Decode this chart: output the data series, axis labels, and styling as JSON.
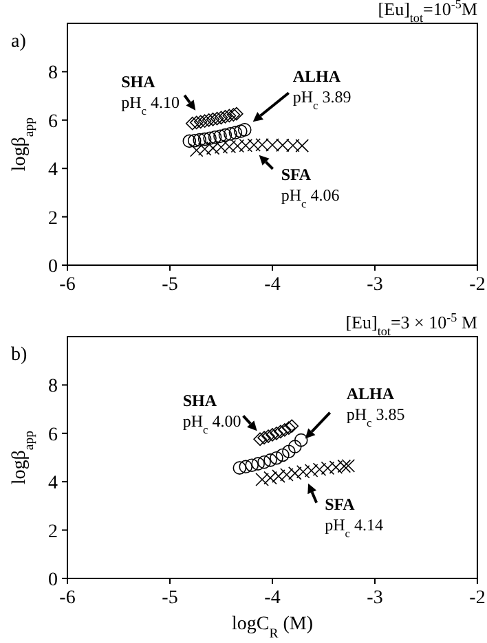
{
  "chart_data": [
    {
      "type": "scatter",
      "title": "[Eu]$_{tot}$=10$^{-5}$M",
      "ylabel": "logβ$_{app}$",
      "xlim": [
        -6,
        -2
      ],
      "xticks": [
        -6,
        -5,
        -4,
        -3,
        -2
      ],
      "ylim": [
        0,
        10
      ],
      "yticks": [
        0,
        2,
        4,
        6,
        8
      ],
      "annotations": [
        "a)",
        {
          "text": "pH$_{c}$ 4.10",
          "x": -4.75,
          "y": 6.4
        },
        {
          "text": "pH$_{c}$ 3.89",
          "x": -4.19,
          "y": 5.93
        },
        {
          "text": "pH$_{c}$ 4.06",
          "x": -4.13,
          "y": 4.55
        }
      ],
      "series": [
        {
          "name": "SHA",
          "color": "#000000",
          "marker": "diamond",
          "x": [
            -4.78,
            -4.74,
            -4.7,
            -4.66,
            -4.62,
            -4.58,
            -4.54,
            -4.5,
            -4.46,
            -4.42,
            -4.38,
            -4.35
          ],
          "values": [
            5.86,
            5.9,
            5.93,
            5.96,
            6.0,
            6.03,
            6.06,
            6.1,
            6.14,
            6.18,
            6.22,
            6.26
          ]
        },
        {
          "name": "ALHA",
          "color": "#000000",
          "marker": "circle",
          "x": [
            -4.81,
            -4.76,
            -4.71,
            -4.66,
            -4.61,
            -4.56,
            -4.51,
            -4.46,
            -4.41,
            -4.36,
            -4.31,
            -4.27
          ],
          "values": [
            5.13,
            5.15,
            5.18,
            5.21,
            5.25,
            5.29,
            5.33,
            5.38,
            5.43,
            5.48,
            5.54,
            5.6
          ]
        },
        {
          "name": "SFA",
          "color": "#000000",
          "marker": "cross",
          "x": [
            -4.74,
            -4.66,
            -4.58,
            -4.5,
            -4.42,
            -4.34,
            -4.26,
            -4.18,
            -4.1,
            -4.0,
            -3.9,
            -3.8,
            -3.71
          ],
          "values": [
            4.75,
            4.8,
            4.84,
            4.88,
            4.9,
            4.93,
            4.95,
            4.97,
            4.98,
            4.97,
            4.96,
            4.95,
            4.94
          ]
        }
      ]
    },
    {
      "type": "scatter",
      "title": "[Eu]$_{tot}$=3 × 10$^{-5}$ M",
      "xlabel": "logC$_{R}$ (M)",
      "ylabel": "logβ$_{app}$",
      "xlim": [
        -6,
        -2
      ],
      "xticks": [
        -6,
        -5,
        -4,
        -3,
        -2
      ],
      "ylim": [
        0,
        10
      ],
      "yticks": [
        0,
        2,
        4,
        6,
        8
      ],
      "annotations": [
        "b)",
        {
          "text": "pH$_{c}$ 4.00",
          "x": -4.15,
          "y": 6.1
        },
        {
          "text": "pH$_{c}$ 3.85",
          "x": -3.68,
          "y": 5.78
        },
        {
          "text": "pH$_{c}$ 4.14",
          "x": -3.65,
          "y": 3.93
        }
      ],
      "series": [
        {
          "name": "SHA",
          "color": "#000000",
          "marker": "diamond",
          "x": [
            -4.12,
            -4.08,
            -4.04,
            -4.0,
            -3.96,
            -3.92,
            -3.88,
            -3.84,
            -3.81
          ],
          "values": [
            5.76,
            5.82,
            5.88,
            5.94,
            6.0,
            6.07,
            6.14,
            6.22,
            6.3
          ]
        },
        {
          "name": "ALHA",
          "color": "#000000",
          "marker": "circle",
          "x": [
            -4.32,
            -4.26,
            -4.2,
            -4.14,
            -4.08,
            -4.02,
            -3.96,
            -3.9,
            -3.84,
            -3.78,
            -3.72
          ],
          "values": [
            4.57,
            4.62,
            4.68,
            4.74,
            4.81,
            4.89,
            4.98,
            5.1,
            5.25,
            5.45,
            5.72
          ]
        },
        {
          "name": "SFA",
          "color": "#000000",
          "marker": "cross",
          "x": [
            -4.1,
            -4.02,
            -3.94,
            -3.86,
            -3.78,
            -3.7,
            -3.62,
            -3.54,
            -3.46,
            -3.38,
            -3.3,
            -3.26
          ],
          "values": [
            4.09,
            4.16,
            4.23,
            4.29,
            4.35,
            4.41,
            4.46,
            4.51,
            4.56,
            4.6,
            4.64,
            4.66
          ]
        }
      ]
    }
  ]
}
